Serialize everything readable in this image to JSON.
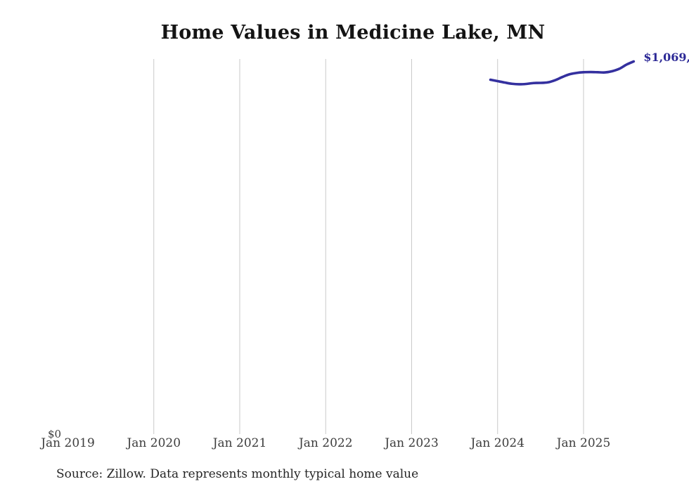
{
  "chart_data": {
    "type": "line",
    "title": "Home Values in Medicine Lake, MN",
    "xlabel": "",
    "ylabel": "",
    "y_axis": {
      "zero_label": "$0",
      "ylim": [
        0,
        1076000
      ]
    },
    "x_axis": {
      "ticks": [
        {
          "label": "Jan 2019",
          "date": "2019-01",
          "gridline": false
        },
        {
          "label": "Jan 2020",
          "date": "2020-01",
          "gridline": true
        },
        {
          "label": "Jan 2021",
          "date": "2021-01",
          "gridline": true
        },
        {
          "label": "Jan 2022",
          "date": "2022-01",
          "gridline": true
        },
        {
          "label": "Jan 2023",
          "date": "2023-01",
          "gridline": true
        },
        {
          "label": "Jan 2024",
          "date": "2024-01",
          "gridline": true
        },
        {
          "label": "Jan 2025",
          "date": "2025-01",
          "gridline": true
        }
      ]
    },
    "series": [
      {
        "name": "Monthly typical home value",
        "points": [
          {
            "date": "2023-12",
            "value": 1016500
          },
          {
            "date": "2024-01",
            "value": 1012500
          },
          {
            "date": "2024-02",
            "value": 1008500
          },
          {
            "date": "2024-03",
            "value": 1005000
          },
          {
            "date": "2024-04",
            "value": 1003500
          },
          {
            "date": "2024-05",
            "value": 1004500
          },
          {
            "date": "2024-06",
            "value": 1007000
          },
          {
            "date": "2024-07",
            "value": 1007500
          },
          {
            "date": "2024-08",
            "value": 1009000
          },
          {
            "date": "2024-09",
            "value": 1015000
          },
          {
            "date": "2024-10",
            "value": 1024000
          },
          {
            "date": "2024-11",
            "value": 1032000
          },
          {
            "date": "2024-12",
            "value": 1036000
          },
          {
            "date": "2025-01",
            "value": 1038000
          },
          {
            "date": "2025-02",
            "value": 1038500
          },
          {
            "date": "2025-03",
            "value": 1038000
          },
          {
            "date": "2025-04",
            "value": 1037500
          },
          {
            "date": "2025-05",
            "value": 1041000
          },
          {
            "date": "2025-06",
            "value": 1048000
          },
          {
            "date": "2025-07",
            "value": 1060000
          },
          {
            "date": "2025-08",
            "value": 1069000
          }
        ]
      }
    ],
    "end_label": "$1,069,",
    "colors": {
      "line": "#34309f",
      "end_label": "#2c2996",
      "gridline": "#c9c9c9"
    },
    "legend": "none",
    "grid": "vertical-only",
    "source_note": "Source: Zillow. Data represents monthly typical home value"
  }
}
